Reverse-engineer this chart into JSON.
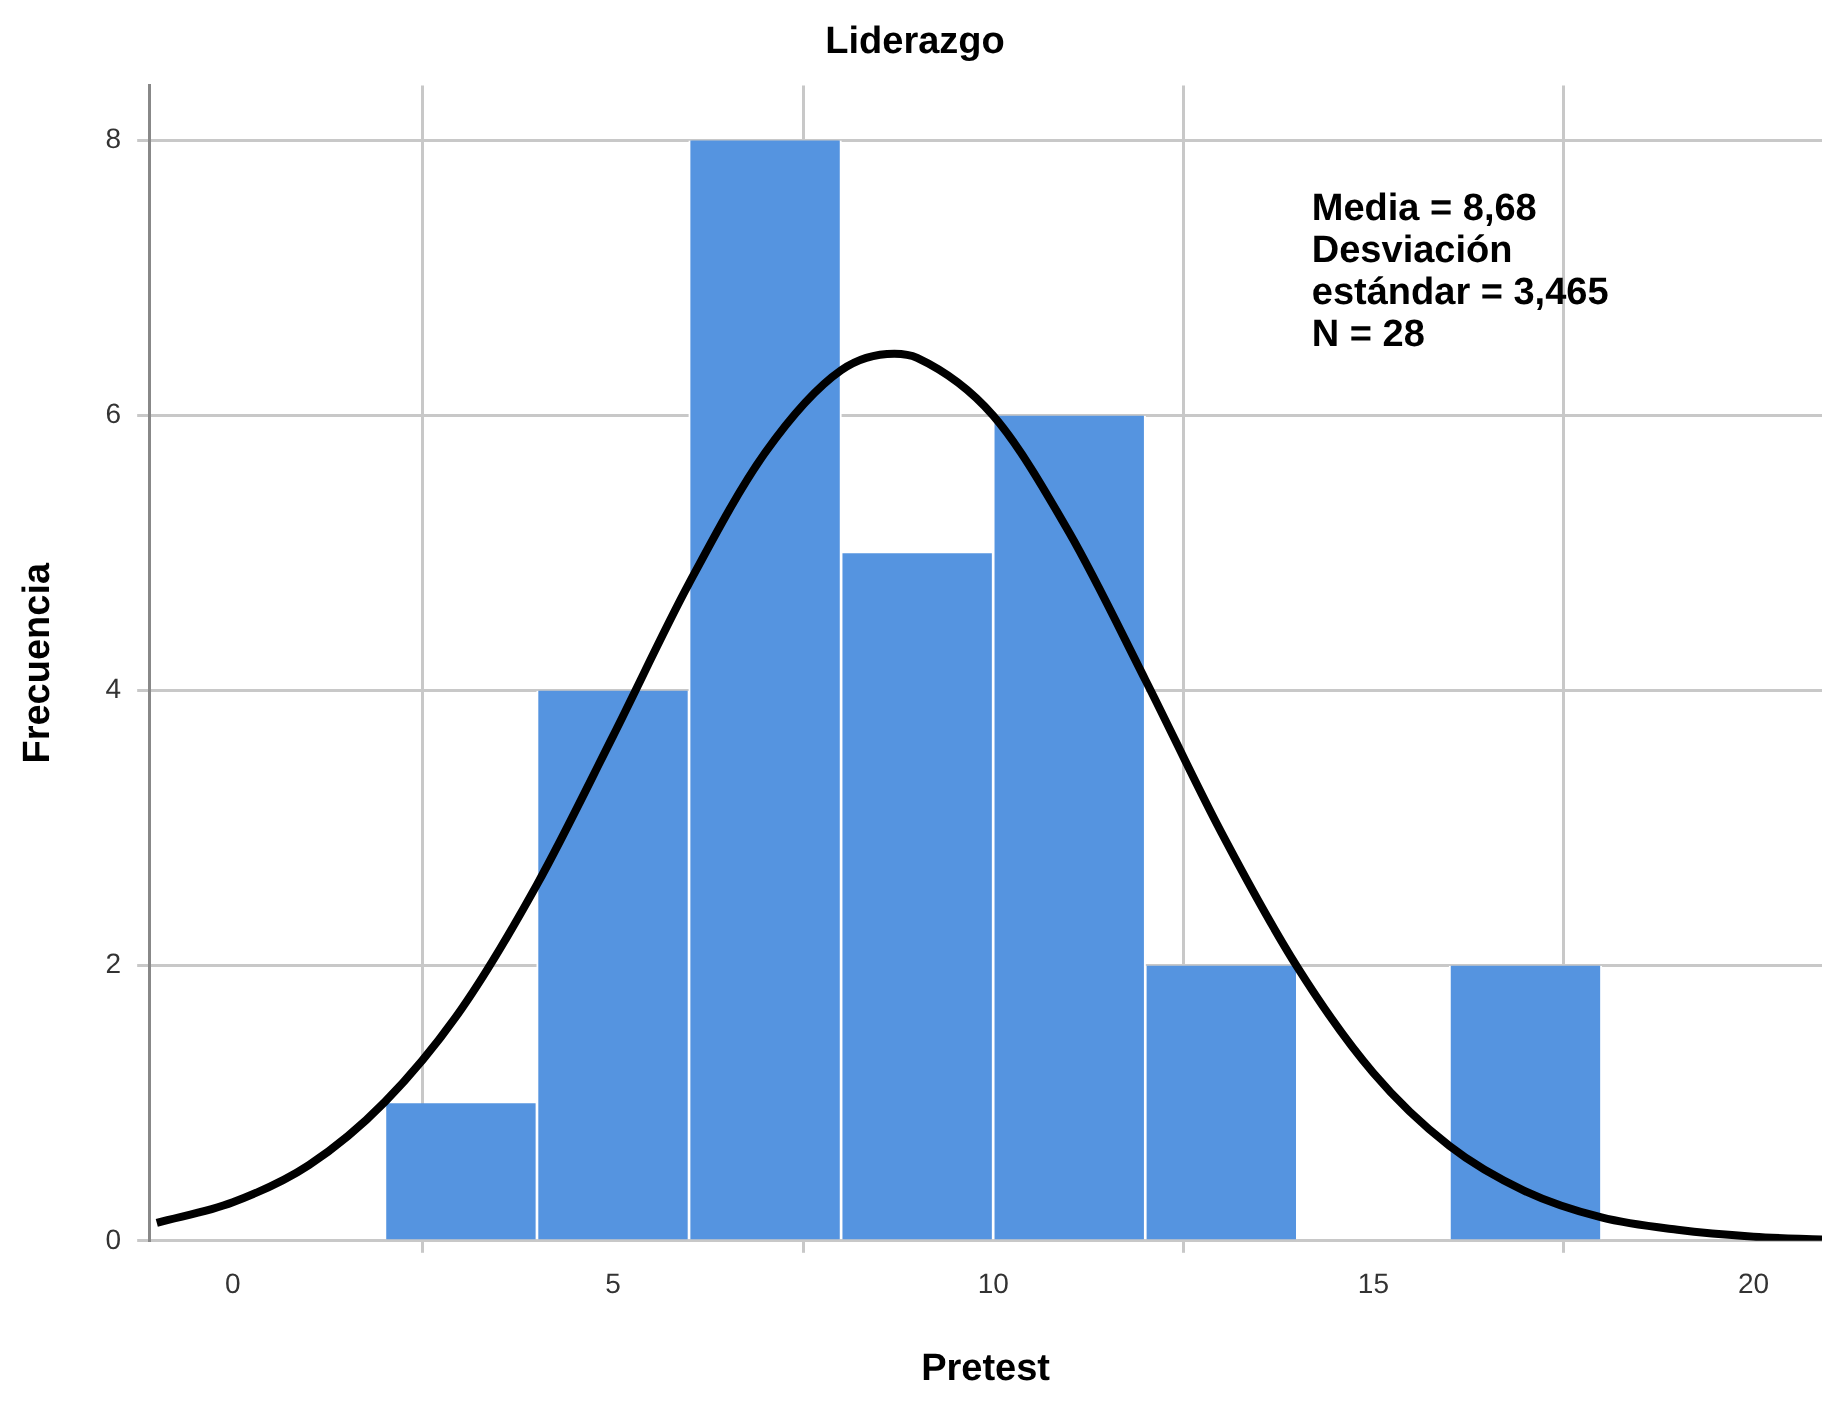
{
  "chart_data": {
    "type": "histogram",
    "title": "Liderazgo",
    "xlabel": "Pretest",
    "ylabel": "Frecuencia",
    "bins": [
      2,
      4,
      6,
      8,
      10,
      12,
      14,
      16,
      18
    ],
    "values": [
      1,
      4,
      8,
      5,
      6,
      2,
      0,
      2
    ],
    "color": "#5594e0",
    "xlim": [
      -1.1,
      20.9
    ],
    "ylim": [
      0,
      8.4
    ],
    "xticks": [
      0,
      5,
      10,
      15,
      20
    ],
    "yticks": [
      0,
      2,
      4,
      6,
      8
    ],
    "grid": true,
    "legend": false,
    "annotations": [
      "Media = 8,68",
      "Desviación estándar = 3,465",
      "N = 28"
    ],
    "series": [
      {
        "type": "line",
        "color": "#000000",
        "marker": "none",
        "line_style": "solid",
        "x": [
          -1,
          0,
          1,
          2,
          3,
          4,
          5,
          6,
          7,
          8,
          8.7,
          9,
          10,
          11,
          12,
          13,
          14,
          15,
          16,
          17,
          18,
          19,
          20,
          20.9
        ],
        "values": [
          0.13,
          0.28,
          0.55,
          1.01,
          1.68,
          2.59,
          3.67,
          4.78,
          5.73,
          6.33,
          6.45,
          6.42,
          6.0,
          5.15,
          4.08,
          2.97,
          1.99,
          1.22,
          0.69,
          0.36,
          0.17,
          0.08,
          0.03,
          0.01
        ]
      }
    ]
  }
}
